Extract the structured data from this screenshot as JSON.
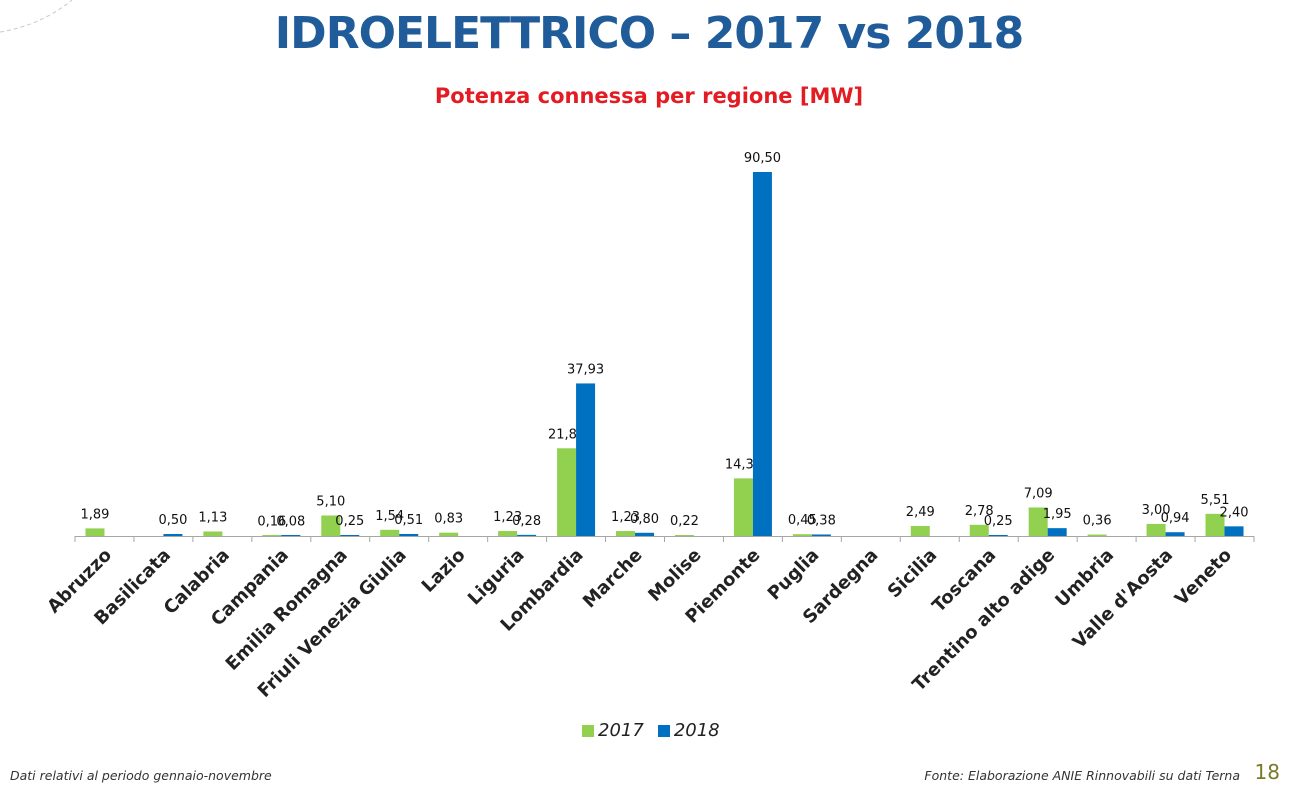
{
  "title": "IDROELETTRICO – 2017 vs 2018",
  "subtitle": "Potenza connessa per regione [MW]",
  "footer_left": "Dati relativi al periodo gennaio-novembre",
  "footer_right": "Fonte: Elaborazione ANIE Rinnovabili su dati Terna",
  "page_number": "18",
  "chart_data": {
    "type": "bar",
    "title": "Potenza connessa per regione [MW]",
    "xlabel": "",
    "ylabel": "",
    "ylim": [
      0,
      90.5
    ],
    "grid": false,
    "legend_position": "bottom",
    "categories": [
      "Abruzzo",
      "Basilicata",
      "Calabria",
      "Campania",
      "Emilia Romagna",
      "Friuli Venezia Giulia",
      "Lazio",
      "Liguria",
      "Lombardia",
      "Marche",
      "Molise",
      "Piemonte",
      "Puglia",
      "Sardegna",
      "Sicilia",
      "Toscana",
      "Trentino alto adige",
      "Umbria",
      "Valle d'Aosta",
      "Veneto"
    ],
    "series": [
      {
        "name": "2017",
        "color": "#92d050",
        "values": [
          1.89,
          null,
          1.13,
          0.16,
          5.1,
          1.54,
          0.83,
          1.23,
          21.81,
          1.23,
          0.22,
          14.33,
          0.45,
          null,
          2.49,
          2.78,
          7.09,
          0.36,
          3.0,
          5.51
        ],
        "labels": [
          "1,89",
          "",
          "1,13",
          "0,16",
          "5,10",
          "1,54",
          "0,83",
          "1,23",
          "21,81",
          "1,23",
          "0,22",
          "14,33",
          "0,45",
          "",
          "2,49",
          "2,78",
          "7,09",
          "0,36",
          "3,00",
          "5,51"
        ]
      },
      {
        "name": "2018",
        "color": "#0070c0",
        "values": [
          null,
          0.5,
          null,
          0.08,
          0.25,
          0.51,
          null,
          0.28,
          37.93,
          0.8,
          null,
          90.5,
          0.38,
          null,
          null,
          0.25,
          1.95,
          null,
          0.94,
          2.4
        ],
        "labels": [
          "",
          "0,50",
          "",
          "0,08",
          "0,25",
          "0,51",
          "",
          "0,28",
          "37,93",
          "0,80",
          "",
          "90,50",
          "0,38",
          "",
          "",
          "0,25",
          "1,95",
          "",
          "0,94",
          "2,40"
        ]
      }
    ]
  }
}
